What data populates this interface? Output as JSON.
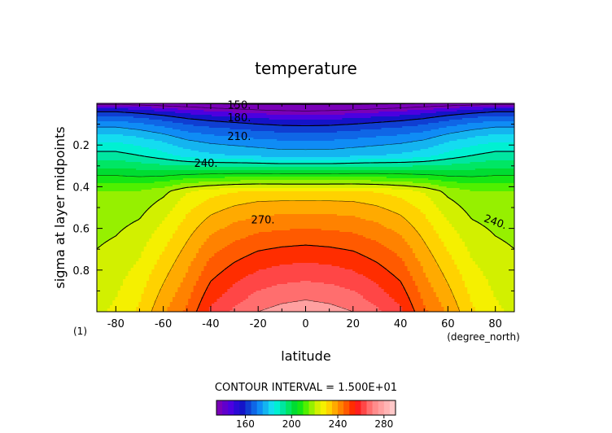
{
  "chart_data": {
    "type": "heatmap",
    "title": "temperature",
    "xlabel": "latitude",
    "ylabel": "sigma at layer midpoints",
    "x_units": "(degree_north)",
    "frame_label": "(1)",
    "xlim": [
      -88,
      88
    ],
    "ylim": [
      1.0,
      0.0
    ],
    "y_inverted": true,
    "x_ticks": [
      "-80",
      "-60",
      "-40",
      "-20",
      "0",
      "20",
      "40",
      "60",
      "80"
    ],
    "x_tick_values": [
      -80,
      -60,
      -40,
      -20,
      0,
      20,
      40,
      60,
      80
    ],
    "y_ticks": [
      "0.2",
      "0.4",
      "0.6",
      "0.8"
    ],
    "y_tick_values": [
      0.2,
      0.4,
      0.6,
      0.8
    ],
    "contour_interval_text": "CONTOUR INTERVAL = 1.500E+01",
    "contour_interval": 15,
    "contour_labels": [
      {
        "text": "150.",
        "lat": -28,
        "sigma": 0.01
      },
      {
        "text": "180.",
        "lat": -28,
        "sigma": 0.07
      },
      {
        "text": "210.",
        "lat": -28,
        "sigma": 0.16
      },
      {
        "text": "240.",
        "lat": -42,
        "sigma": 0.29
      },
      {
        "text": "270.",
        "lat": -18,
        "sigma": 0.56
      },
      {
        "text": "240.",
        "lat": 80,
        "sigma": 0.57
      }
    ],
    "profile": {
      "lat": [
        -88,
        -80,
        -70,
        -60,
        -50,
        -40,
        -30,
        -20,
        -10,
        0,
        10,
        20,
        30,
        40,
        50,
        60,
        70,
        80,
        88
      ],
      "t_floor": [
        155,
        155,
        153,
        151,
        149,
        147,
        145,
        143,
        142,
        141,
        142,
        143,
        145,
        147,
        149,
        151,
        153,
        155,
        155
      ],
      "t_top": [
        212,
        212,
        210,
        207,
        203,
        201,
        200,
        199,
        198,
        198,
        198,
        199,
        200,
        201,
        203,
        207,
        210,
        212,
        212
      ],
      "t_trop": [
        235,
        235,
        235,
        238,
        244,
        247,
        249,
        250,
        250,
        250,
        250,
        250,
        249,
        247,
        244,
        238,
        235,
        235,
        235
      ],
      "t_max": [
        244,
        246,
        251,
        259,
        266,
        276,
        281,
        285,
        287,
        288,
        287,
        285,
        281,
        276,
        266,
        259,
        251,
        246,
        244
      ]
    },
    "colorbar": {
      "levels": [
        135,
        140,
        145,
        150,
        155,
        160,
        165,
        170,
        175,
        180,
        185,
        190,
        195,
        200,
        205,
        210,
        215,
        220,
        225,
        230,
        235,
        240,
        245,
        250,
        255,
        260,
        265,
        270,
        275,
        280,
        285,
        290
      ],
      "tick_labels": [
        "160",
        "200",
        "240",
        "280"
      ],
      "tick_values": [
        160,
        200,
        240,
        280
      ]
    },
    "colors": [
      "#7a00b8",
      "#4c00e0",
      "#1414c8",
      "#0f3ed2",
      "#0f66e6",
      "#0f8cf5",
      "#14b4f0",
      "#14dcf0",
      "#00f0d2",
      "#00e6a0",
      "#00e664",
      "#00dc32",
      "#14e614",
      "#50f000",
      "#96f000",
      "#d2f000",
      "#f5f000",
      "#ffd200",
      "#ffaa00",
      "#ff8200",
      "#ff5a00",
      "#ff2d00",
      "#ff4646",
      "#ff6e6e",
      "#ffa0a0"
    ]
  }
}
